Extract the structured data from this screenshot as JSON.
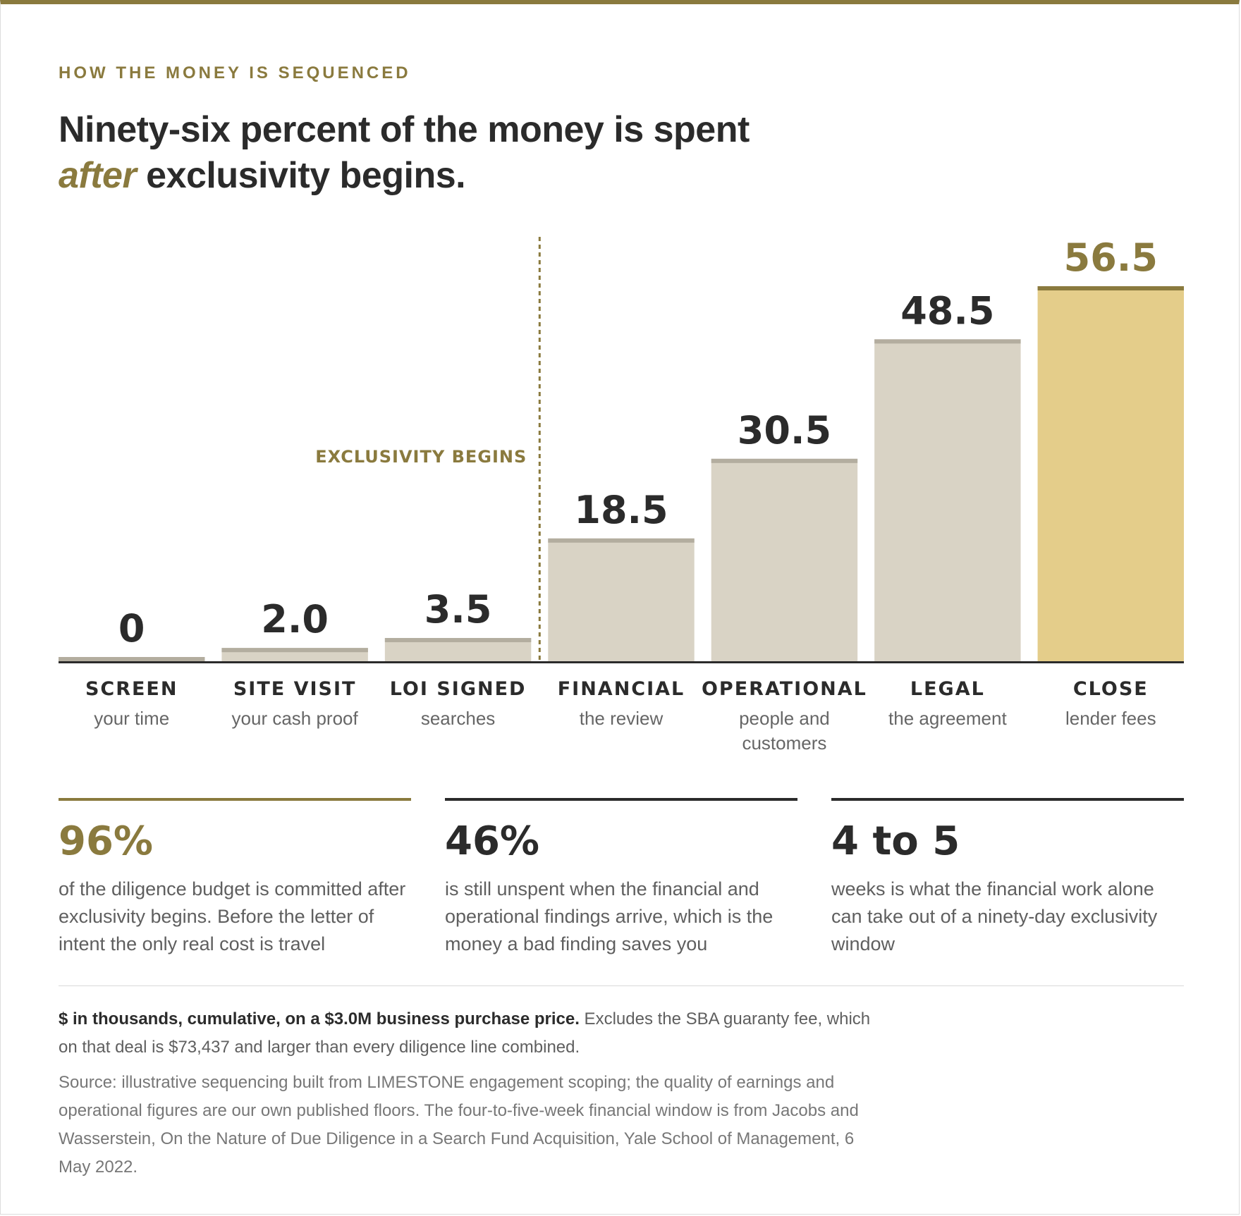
{
  "eyebrow": "HOW THE MONEY IS SEQUENCED",
  "headline": {
    "line1": "Ninety-six percent of the money is spent",
    "accent": "after",
    "line2_rest": " exclusivity begins."
  },
  "chart_data": {
    "type": "bar",
    "categories": [
      "SCREEN",
      "SITE VISIT",
      "LOI SIGNED",
      "FINANCIAL",
      "OPERATIONAL",
      "LEGAL",
      "CLOSE"
    ],
    "subtitles": [
      [
        "your time"
      ],
      [
        "your cash proof"
      ],
      [
        "searches"
      ],
      [
        "the review"
      ],
      [
        "people and",
        "customers"
      ],
      [
        "the agreement"
      ],
      [
        "lender fees"
      ]
    ],
    "values": [
      0,
      2.0,
      3.5,
      18.5,
      30.5,
      48.5,
      56.5
    ],
    "value_labels": [
      "0",
      "2.0",
      "3.5",
      "18.5",
      "30.5",
      "48.5",
      "56.5"
    ],
    "highlight_index": 6,
    "annotation": {
      "label": "EXCLUSIVITY BEGINS",
      "between": [
        "LOI SIGNED",
        "FINANCIAL"
      ]
    },
    "colors": {
      "bar": "#d9d3c5",
      "bar_cap": "#b3ad9f",
      "highlight": "#e4cd8a",
      "highlight_cap": "#8a7a3e",
      "highlight_text": "#8a7a3e",
      "text": "#2b2b2b",
      "baseline": "#2b2b2b"
    },
    "ylim": [
      0,
      56.5
    ],
    "grid": false
  },
  "stats": [
    {
      "number": "96%",
      "text": "of the diligence budget is committed after exclusivity begins. Before the letter of intent the only real cost is travel"
    },
    {
      "number": "46%",
      "text": "is still unspent when the financial and operational findings arrive, which is the money a bad finding saves you"
    },
    {
      "number": "4 to 5",
      "text": "weeks is what the financial work alone can take out of a ninety-day exclusivity window"
    }
  ],
  "note": {
    "bold": "$ in thousands, cumulative, on a $3.0M business purchase price.",
    "rest": " Excludes the SBA guaranty fee, which on that deal is $73,437 and larger than every diligence line combined."
  },
  "source": "Source: illustrative sequencing built from LIMESTONE engagement scoping; the quality of earnings and operational figures are our own published floors. The four-to-five-week financial window is from Jacobs and Wasserstein, On the Nature of Due Diligence in a Search Fund Acquisition, Yale School of Management, 6 May 2022."
}
